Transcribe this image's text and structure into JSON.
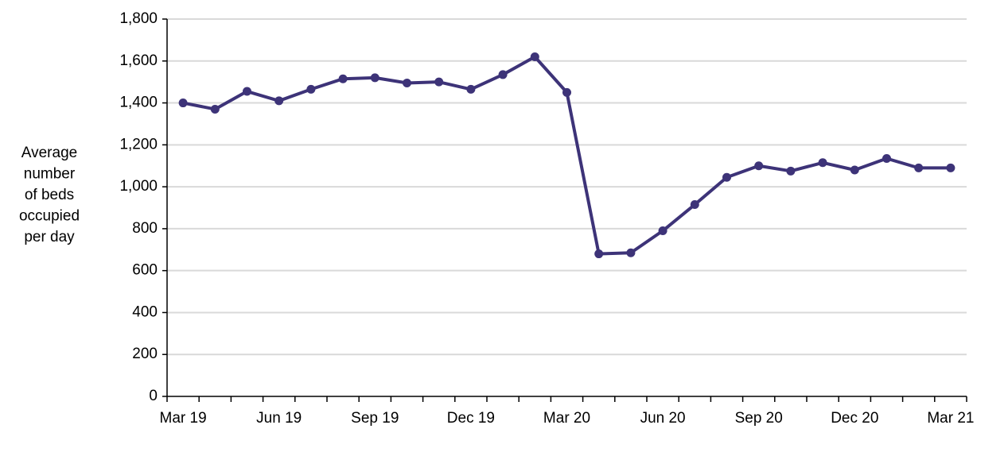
{
  "chart_data": {
    "type": "line",
    "y_label": [
      "Average",
      "number",
      "of beds",
      "occupied",
      "per day"
    ],
    "categories": [
      "Mar 19",
      null,
      null,
      "Jun 19",
      null,
      null,
      "Sep 19",
      null,
      null,
      "Dec 19",
      null,
      null,
      "Mar 20",
      null,
      null,
      "Jun 20",
      null,
      null,
      "Sep 20",
      null,
      null,
      "Dec 20",
      null,
      null,
      "Mar 21"
    ],
    "series": [
      {
        "color": "#3d3378",
        "values": [
          1400,
          1370,
          1455,
          1410,
          1465,
          1515,
          1520,
          1495,
          1500,
          1465,
          1535,
          1620,
          1450,
          680,
          685,
          790,
          915,
          1045,
          1100,
          1075,
          1115,
          1080,
          1135,
          1090,
          1090
        ]
      }
    ],
    "ylim": [
      0,
      1800
    ],
    "yticks": [
      0,
      200,
      400,
      600,
      800,
      {
        "value": 1000,
        "label": "1,000"
      },
      {
        "value": 1200,
        "label": "1,200"
      },
      {
        "value": 1400,
        "label": "1,400"
      },
      {
        "value": 1600,
        "label": "1,600"
      },
      {
        "value": 1800,
        "label": "1,800"
      }
    ],
    "grid": true
  }
}
